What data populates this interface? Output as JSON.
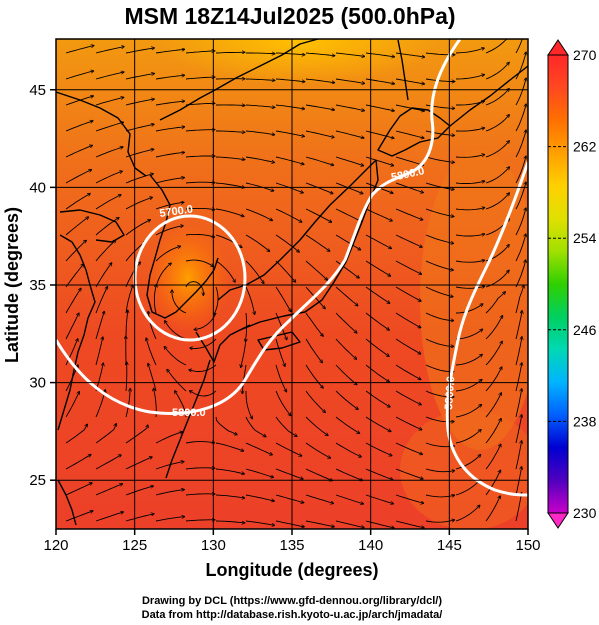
{
  "title": "MSM 18Z14Jul2025 (500.0hPa)",
  "xaxis": {
    "label": "Longitude (degrees)",
    "range": [
      120,
      150
    ],
    "ticks": [
      "120",
      "125",
      "130",
      "135",
      "140",
      "145",
      "150"
    ]
  },
  "yaxis": {
    "label": "Latitude  (degrees)",
    "range": [
      22.5,
      47.6
    ],
    "ticks": [
      "25",
      "30",
      "35",
      "40",
      "45"
    ]
  },
  "colorbar": {
    "range": [
      230,
      270
    ],
    "ticks": [
      "270",
      "262",
      "254",
      "246",
      "238",
      "230"
    ],
    "colors": [
      "#c800c8",
      "#5000c0",
      "#0000d0",
      "#0060ff",
      "#00b4ff",
      "#00d8b4",
      "#00d060",
      "#30d000",
      "#a0e000",
      "#e0e000",
      "#ffd000",
      "#ffa000",
      "#ff7000",
      "#ff4820",
      "#ff2828"
    ]
  },
  "contours": [
    {
      "label": "5700.0"
    },
    {
      "label": "5800.0"
    },
    {
      "label": "5800.0"
    },
    {
      "label": "5800.0"
    }
  ],
  "credits": {
    "line1": "Drawing by DCL (https://www.gfd-dennou.org/library/dcl/)",
    "line2": "Data from http://database.rish.kyoto-u.ac.jp/arch/jmadata/"
  }
}
